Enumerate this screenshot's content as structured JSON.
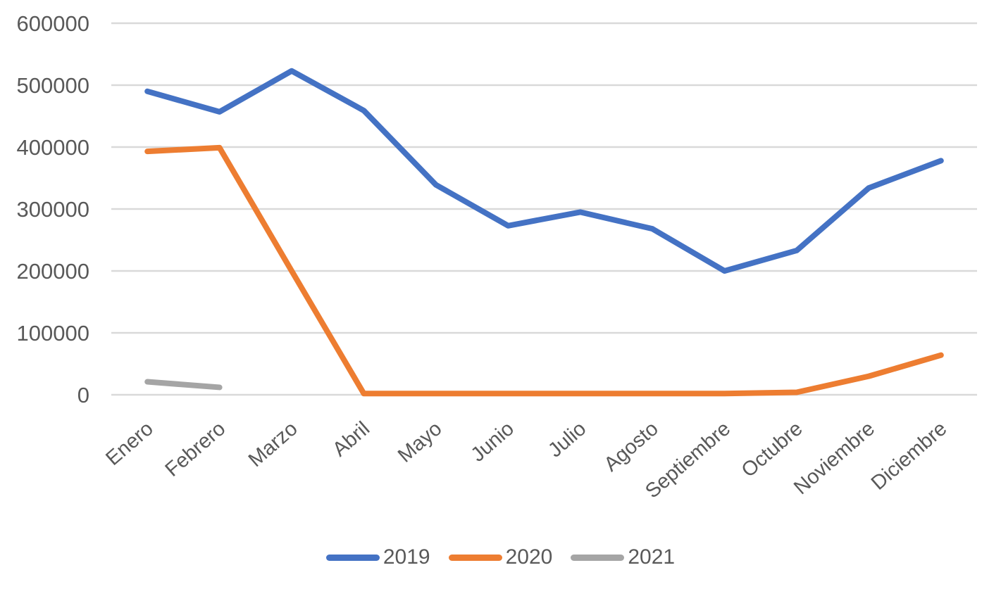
{
  "chart_data": {
    "type": "line",
    "title": "",
    "xlabel": "",
    "ylabel": "",
    "categories": [
      "Enero",
      "Febrero",
      "Marzo",
      "Abril",
      "Mayo",
      "Junio",
      "Julio",
      "Agosto",
      "Septiembre",
      "Octubre",
      "Noviembre",
      "Diciembre"
    ],
    "series": [
      {
        "name": "2019",
        "color": "#4472C4",
        "values": [
          490000,
          457000,
          523000,
          459000,
          339000,
          273000,
          295000,
          268000,
          200000,
          233000,
          334000,
          378000
        ]
      },
      {
        "name": "2020",
        "color": "#ED7D31",
        "values": [
          393000,
          399000,
          200000,
          2000,
          2000,
          2000,
          2000,
          2000,
          2000,
          4000,
          30000,
          64000
        ]
      },
      {
        "name": "2021",
        "color": "#A5A5A5",
        "values": [
          21000,
          12000
        ]
      }
    ],
    "ylim": [
      0,
      600000
    ],
    "yticks": [
      "0",
      "100000",
      "200000",
      "300000",
      "400000",
      "500000",
      "600000"
    ],
    "grid": "horizontal",
    "legend_position": "bottom",
    "legend": [
      "2019",
      "2020",
      "2021"
    ]
  },
  "styles": {
    "background": "#FFFFFF",
    "grid_color": "#D9D9D9",
    "text_color": "#595959"
  }
}
